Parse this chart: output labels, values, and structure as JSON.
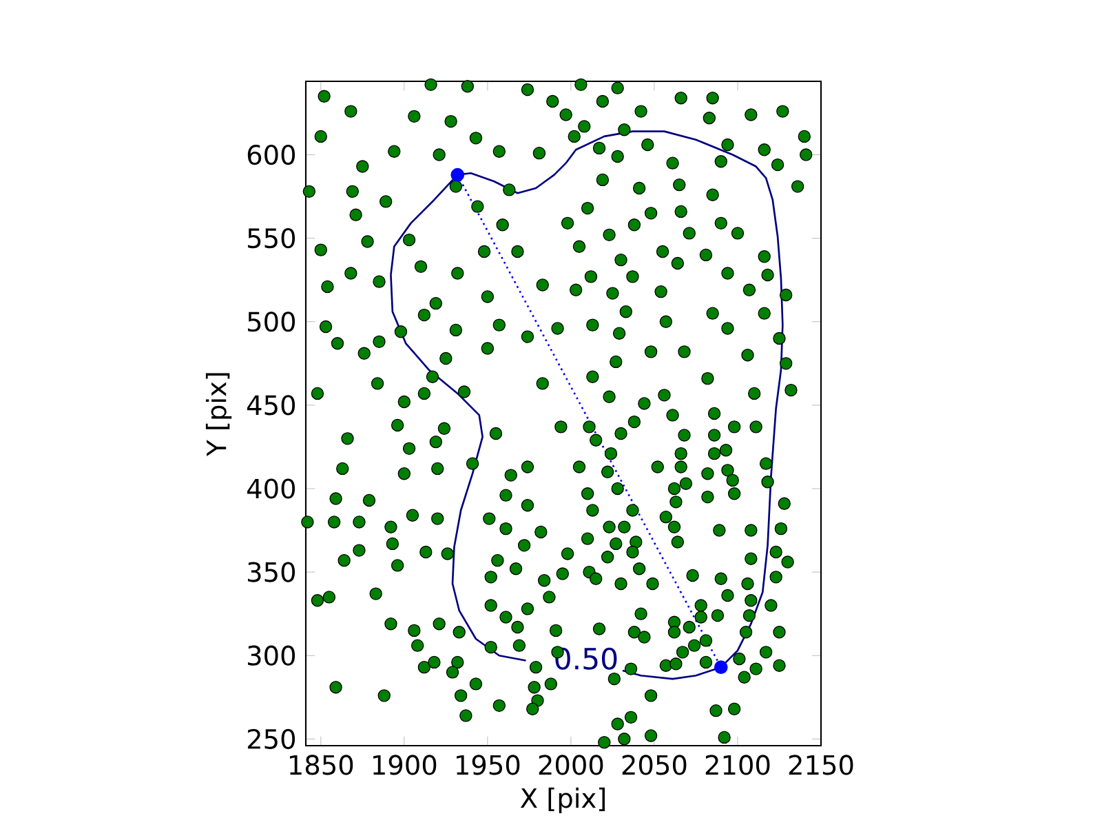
{
  "chart_data": {
    "type": "scatter",
    "xlabel": "X [pix]",
    "ylabel": "Y [pix]",
    "xlim": [
      1841,
      2150
    ],
    "ylim": [
      246,
      644
    ],
    "xticks": [
      1850,
      1900,
      1950,
      2000,
      2050,
      2100,
      2150
    ],
    "yticks": [
      250,
      300,
      350,
      400,
      450,
      500,
      550,
      600
    ],
    "series": [
      {
        "marker": "circle",
        "color": "#008000",
        "x": [
          1852,
          1916,
          1938,
          1868,
          1906,
          1928,
          1974,
          1989,
          1850,
          1943,
          1894,
          1921,
          1957,
          1981,
          1875,
          1931,
          1963,
          1869,
          1843,
          1889,
          1944,
          1871,
          1959,
          1878,
          1903,
          1850,
          1948,
          1968,
          1910,
          1868,
          1932,
          1854,
          1885,
          1983,
          1950,
          1919,
          1912,
          1853,
          1898,
          1931,
          1957,
          1974,
          1992,
          1860,
          1885,
          1950,
          1876,
          1925,
          1917,
          1884,
          1983,
          1848,
          1912,
          1936,
          1900,
          2006,
          2028,
          2019,
          2066,
          2085,
          2042,
          2083,
          2108,
          2127,
          1997,
          2008,
          2032,
          2002,
          2017,
          2046,
          2094,
          2116,
          2140,
          2028,
          2061,
          2090,
          2124,
          2141,
          2019,
          2041,
          2065,
          2085,
          2136,
          2010,
          2048,
          2066,
          1998,
          2038,
          2090,
          2023,
          2071,
          2100,
          2005,
          2055,
          2081,
          2116,
          2030,
          2064,
          2012,
          2037,
          2094,
          2118,
          2003,
          2025,
          2054,
          2107,
          2129,
          2033,
          2085,
          2116,
          2013,
          2057,
          2094,
          2125,
          2029,
          2048,
          2068,
          2106,
          2027,
          2082,
          2129,
          2013,
          2044,
          2056,
          2110,
          2132,
          2023,
          1896,
          1866,
          1924,
          1903,
          1919,
          1863,
          1900,
          1920,
          1941,
          1955,
          1859,
          1879,
          1842,
          1858,
          1873,
          1905,
          1920,
          1892,
          1864,
          1873,
          1893,
          1913,
          1926,
          1896,
          1848,
          1855,
          1883,
          1892,
          1906,
          1921,
          1933,
          1908,
          1912,
          1918,
          1932,
          1929,
          1943,
          1859,
          1888,
          1934,
          1937,
          1957,
          1951,
          1964,
          1974,
          1961,
          1974,
          1961,
          1982,
          1972,
          1956,
          1967,
          1952,
          1984,
          1987,
          1952,
          1974,
          1961,
          1968,
          1991,
          1952,
          1969,
          1992,
          1979,
          1988,
          1978,
          1980,
          1977,
          1994,
          2011,
          2038,
          2061,
          2086,
          2098,
          2111,
          2015,
          2030,
          2068,
          2086,
          2024,
          2066,
          2086,
          2093,
          2005,
          2022,
          2052,
          2066,
          2082,
          2094,
          2117,
          2028,
          2069,
          2097,
          2010,
          2062,
          2098,
          2118,
          2013,
          2037,
          2057,
          2063,
          2082,
          2128,
          2023,
          2032,
          2062,
          2089,
          2108,
          2126,
          2010,
          2027,
          2039,
          2064,
          1998,
          2022,
          2037,
          2108,
          2123,
          2130,
          1995,
          2011,
          2041,
          2015,
          2030,
          2049,
          2073,
          2090,
          2106,
          2123,
          2094,
          2108,
          2120,
          2042,
          2078,
          2078,
          2088,
          2062,
          2062,
          2071,
          2107,
          2017,
          2038,
          2044,
          2105,
          2125,
          2074,
          2081,
          2067,
          2117,
          2101,
          2081,
          2057,
          2063,
          2036,
          2111,
          2125,
          2026,
          2104,
          2048,
          2087,
          2098,
          2036,
          2028,
          2048,
          2092,
          2032,
          2020
        ],
        "values": [
          635,
          642,
          641,
          626,
          623,
          620,
          639,
          632,
          611,
          610,
          602,
          600,
          602,
          601,
          593,
          581,
          579,
          578,
          578,
          572,
          569,
          564,
          558,
          548,
          549,
          543,
          542,
          542,
          533,
          529,
          529,
          521,
          524,
          522,
          515,
          511,
          504,
          497,
          494,
          495,
          498,
          491,
          496,
          487,
          488,
          484,
          481,
          478,
          467,
          463,
          463,
          457,
          457,
          458,
          452,
          642,
          640,
          632,
          634,
          634,
          626,
          622,
          624,
          626,
          624,
          617,
          615,
          611,
          604,
          606,
          606,
          603,
          611,
          599,
          595,
          596,
          594,
          600,
          585,
          580,
          582,
          576,
          581,
          568,
          565,
          566,
          559,
          558,
          559,
          552,
          553,
          553,
          545,
          542,
          540,
          539,
          537,
          535,
          527,
          527,
          529,
          528,
          519,
          517,
          518,
          519,
          516,
          506,
          505,
          505,
          498,
          500,
          496,
          490,
          493,
          482,
          482,
          480,
          476,
          466,
          475,
          467,
          451,
          456,
          457,
          459,
          455,
          438,
          430,
          436,
          424,
          428,
          412,
          409,
          412,
          415,
          433,
          394,
          393,
          380,
          380,
          380,
          384,
          382,
          377,
          357,
          363,
          367,
          362,
          361,
          354,
          333,
          335,
          337,
          319,
          315,
          319,
          314,
          306,
          293,
          296,
          296,
          290,
          283,
          281,
          276,
          276,
          264,
          270,
          382,
          408,
          413,
          396,
          390,
          376,
          374,
          366,
          357,
          352,
          347,
          345,
          335,
          330,
          328,
          323,
          317,
          315,
          305,
          306,
          302,
          293,
          283,
          281,
          273,
          268,
          437,
          437,
          440,
          444,
          445,
          437,
          437,
          429,
          433,
          432,
          432,
          421,
          421,
          421,
          423,
          413,
          410,
          413,
          413,
          409,
          411,
          415,
          400,
          403,
          405,
          397,
          400,
          397,
          404,
          387,
          387,
          383,
          392,
          395,
          391,
          377,
          377,
          377,
          375,
          375,
          376,
          370,
          367,
          368,
          368,
          361,
          359,
          362,
          358,
          362,
          356,
          349,
          350,
          352,
          346,
          343,
          343,
          348,
          346,
          343,
          347,
          336,
          333,
          330,
          325,
          330,
          323,
          324,
          320,
          314,
          317,
          324,
          316,
          314,
          311,
          314,
          314,
          306,
          309,
          302,
          302,
          298,
          296,
          294,
          295,
          292,
          292,
          294,
          286,
          287,
          276,
          267,
          268,
          263,
          259,
          252,
          251,
          250,
          248
        ]
      },
      {
        "type": "line",
        "marker": "circle",
        "line_style": "dotted",
        "color": "#0000ff",
        "x": [
          1932,
          2090
        ],
        "values": [
          588,
          293
        ]
      },
      {
        "type": "line",
        "marker": "none",
        "line_style": "solid",
        "color": "#000080",
        "x": [
          1892,
          1894,
          1904,
          1918,
          1932,
          1940,
          1954,
          1968,
          1979,
          1990,
          1997,
          2003,
          2020,
          2037,
          2056,
          2075,
          2097,
          2111,
          2117,
          2121,
          2124,
          2126,
          2127,
          2126,
          2123,
          2120,
          2118,
          2115,
          2108,
          2100,
          2090,
          2075,
          2061,
          2042,
          2031,
          1995,
          1973,
          1957,
          1943,
          1933,
          1929,
          1930,
          1934,
          1941,
          1947,
          1945,
          1932,
          1915,
          1901,
          1893,
          1892
        ],
        "values": [
          528,
          545,
          559,
          573,
          588,
          589,
          584,
          577,
          580,
          588,
          595,
          603,
          611,
          614,
          614,
          609,
          600,
          593,
          586,
          573,
          551,
          526,
          498,
          471,
          448,
          407,
          366,
          338,
          319,
          303,
          293,
          288,
          286,
          288,
          291,
          null,
          297,
          300,
          310,
          327,
          343,
          365,
          387,
          409,
          431,
          444,
          457,
          471,
          487,
          506,
          528
        ]
      }
    ],
    "annotations": [
      "0.50"
    ]
  }
}
